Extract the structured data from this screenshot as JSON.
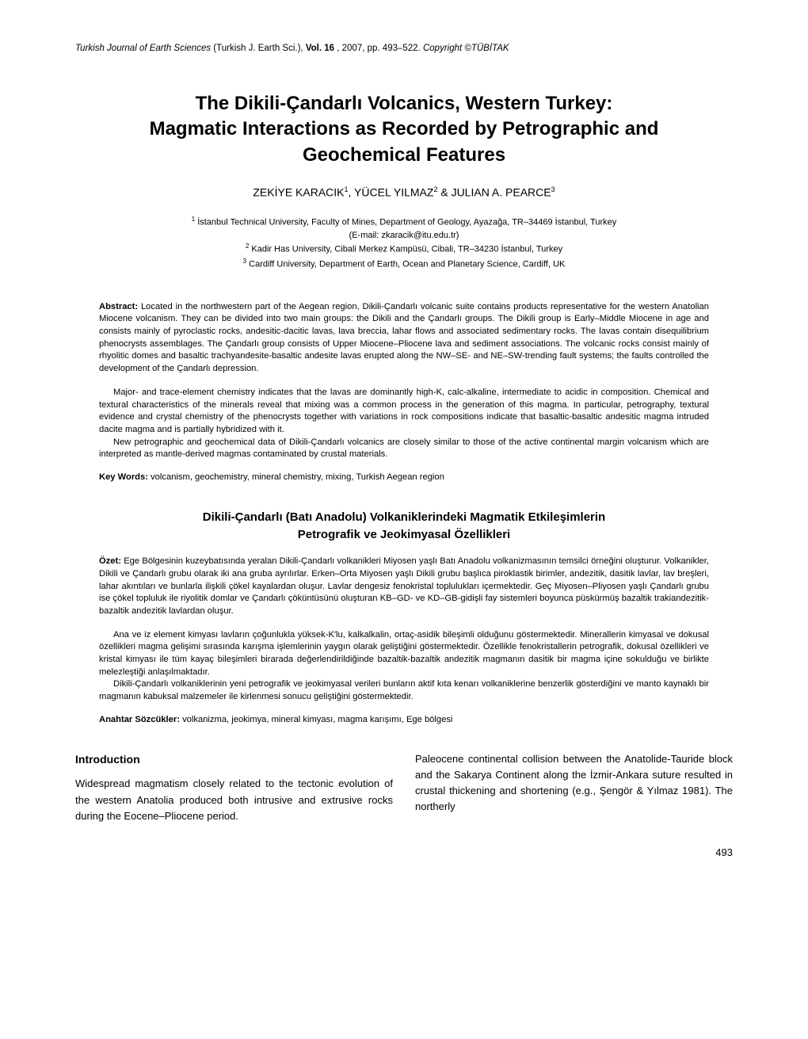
{
  "running_header": {
    "journal": "Turkish Journal of Earth Sciences",
    "journal_abbrev": "(Turkish J. Earth Sci.),",
    "vol_label": "Vol. 16",
    "pages": ", 2007, pp. 493–522.",
    "copyright": "Copyright ©TÜBİTAK"
  },
  "title_line1": "The Dikili-Çandarlı Volcanics, Western Turkey:",
  "title_line2": "Magmatic Interactions as Recorded by Petrographic and",
  "title_line3": "Geochemical Features",
  "authors": {
    "a1": "ZEKİYE KARACIK",
    "s1": "1",
    "a2": ", YÜCEL YILMAZ",
    "s2": "2",
    "a3": " & JULIAN A. PEARCE",
    "s3": "3"
  },
  "affiliations": {
    "s1": "1",
    "l1": " İstanbul Technical University, Faculty of Mines, Department of Geology, Ayazağa, TR–34469 İstanbul, Turkey",
    "email": "(E-mail: zkaracik@itu.edu.tr)",
    "s2": "2",
    "l2": " Kadir Has University, Cibali Merkez Kampüsü, Cibali, TR–34230 İstanbul, Turkey",
    "s3": "3",
    "l3": " Cardiff University, Department of Earth, Ocean and Planetary Science, Cardiff, UK"
  },
  "abstract_label": "Abstract:",
  "abstract_p1": " Located in the northwestern part of the Aegean region, Dikili-Çandarlı volcanic suite contains products representative for the western Anatolian Miocene volcanism. They can be divided into two main groups: the Dikili and the Çandarlı groups. The Dikili group is Early–Middle Miocene in age and consists mainly of pyroclastic rocks, andesitic-dacitic lavas, lava breccia, lahar flows and associated sedimentary rocks. The lavas contain disequilibrium phenocrysts assemblages. The Çandarlı group consists of Upper Miocene–Pliocene lava and sediment associations. The volcanic rocks consist mainly of rhyolitic domes and basaltic trachyandesite-basaltic andesite lavas erupted along the NW–SE- and NE–SW-trending fault systems; the faults controlled the development of the Çandarlı depression.",
  "abstract_p2": "Major- and trace-element chemistry indicates that the lavas are dominantly high-K, calc-alkaline, intermediate to acidic in composition. Chemical and textural characteristics of the minerals reveal that mixing was a common process in the generation of this magma. In particular, petrography, textural evidence and crystal chemistry of the phenocrysts together with variations in rock compositions indicate that basaltic-basaltic andesitic magma intruded dacite magma and is partially hybridized with it.",
  "abstract_p3": "New petrographic and geochemical data of Dikili-Çandarlı volcanics are closely similar to those of the active continental margin volcanism which are interpreted as mantle-derived magmas contaminated by crustal materials.",
  "keywords_label": "Key Words:",
  "keywords_text": " volcanism, geochemistry, mineral chemistry, mixing, Turkish Aegean region",
  "subtitle_line1": "Dikili-Çandarlı (Batı Anadolu) Volkaniklerindeki Magmatik Etkileşimlerin",
  "subtitle_line2": "Petrografik ve Jeokimyasal Özellikleri",
  "ozet_label": "Özet:",
  "ozet_p1": " Ege Bölgesinin kuzeybatısında yeralan Dikili-Çandarlı volkanikleri Miyosen yaşlı Batı Anadolu volkanizmasının temsilci örneğini oluşturur. Volkanikler, Dikili ve Çandarlı grubu olarak iki ana gruba ayrılırlar. Erken–Orta Miyosen yaşlı Dikili grubu başlıca piroklastik birimler, andezitik, dasitik lavlar, lav breşleri, lahar akıntıları ve bunlarla ilişkili çökel kayalardan oluşur. Lavlar dengesiz fenokristal toplulukları içermektedir. Geç Miyosen–Pliyosen yaşlı Çandarlı grubu ise çökel topluluk ile riyolitik domlar ve Çandarlı çöküntüsünü oluşturan KB–GD- ve KD–GB-gidişli fay sistemleri boyunca püskürmüş bazaltik trakiandezitik-bazaltik andezitik lavlardan oluşur.",
  "ozet_p2": "Ana ve iz element kimyası lavların çoğunlukla yüksek-K'lu, kalkalkalin, ortaç-asidik bileşimli olduğunu göstermektedir. Minerallerin kimyasal ve dokusal özellikleri magma gelişimi sırasında karışma işlemlerinin yaygın olarak geliştiğini göstermektedir. Özellikle fenokristallerin petrografik, dokusal özellikleri ve kristal kimyası ile tüm kayaç bileşimleri birarada değerlendirildiğinde bazaltik-bazaltik andezitik magmanın dasitik bir magma içine sokulduğu ve birlikte melezleştiği anlaşılmaktadır.",
  "ozet_p3": "Dikili-Çandarlı volkaniklerinin yeni petrografik ve jeokimyasal verileri bunların aktif kıta kenarı volkaniklerine benzerlik gösterdiğini ve manto kaynaklı bir magmanın kabuksal malzemeler ile kirlenmesi sonucu geliştiğini göstermektedir.",
  "anahtar_label": "Anahtar Sözcükler:",
  "anahtar_text": " volkanizma, jeokimya, mineral kimyası, magma karışımı, Ege bölgesi",
  "intro_heading": "Introduction",
  "intro_left": "Widespread magmatism closely related to the tectonic evolution of the western Anatolia produced both intrusive and extrusive rocks during the Eocene–Pliocene period.",
  "intro_right": "Paleocene continental collision between the Anatolide-Tauride block and the Sakarya Continent along the İzmir-Ankara suture resulted in crustal thickening and shortening (e.g., Şengör & Yılmaz 1981). The northerly",
  "page_number": "493"
}
